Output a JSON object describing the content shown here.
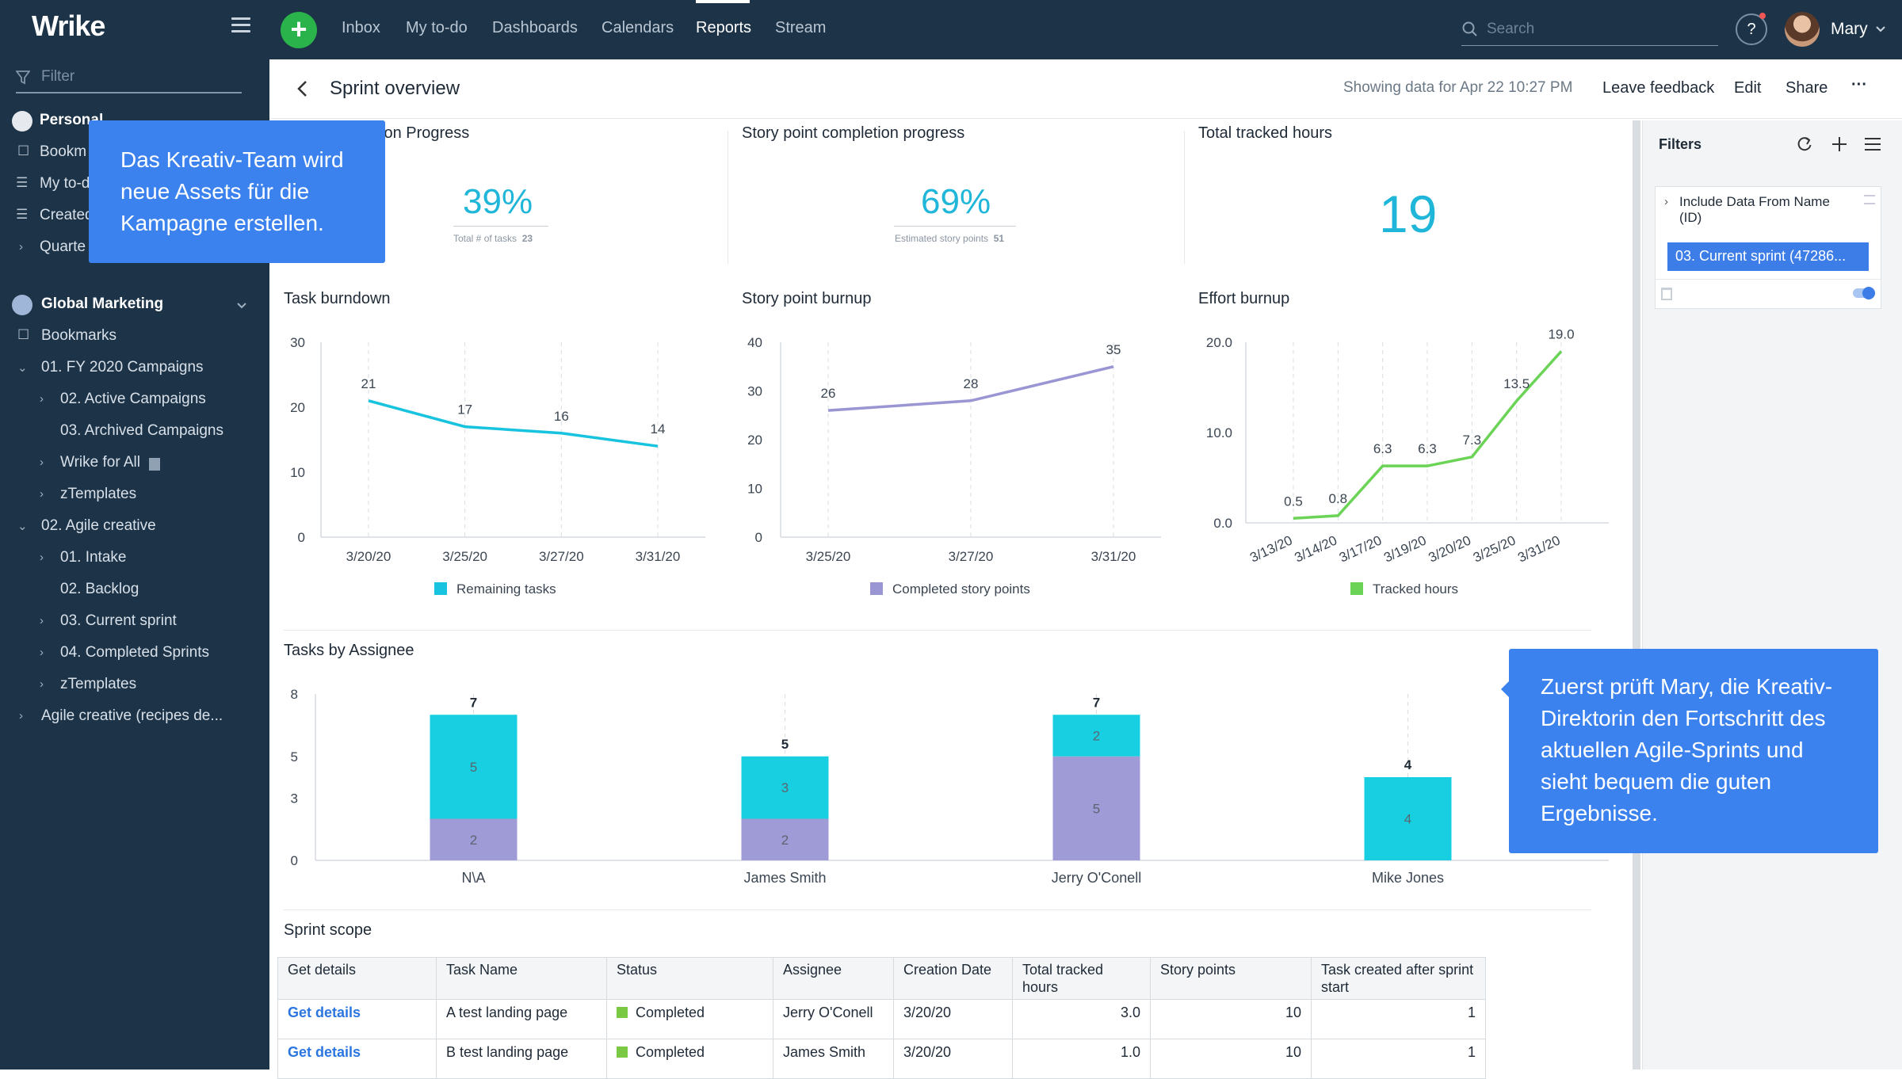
{
  "app": {
    "logo": "Wrike",
    "add_label": "+"
  },
  "nav": {
    "items": [
      "Inbox",
      "My to-do",
      "Dashboards",
      "Calendars",
      "Reports",
      "Stream"
    ],
    "active": "Reports"
  },
  "search": {
    "placeholder": "Search"
  },
  "help": {
    "label": "?"
  },
  "user": {
    "name": "Mary"
  },
  "sidebar": {
    "filter_placeholder": "Filter",
    "personal": {
      "label": "Personal",
      "items": [
        "Bookm",
        "My to-d",
        "Created",
        "Quarte"
      ]
    },
    "space": {
      "label": "Global Marketing",
      "items": [
        {
          "label": "Bookmarks"
        },
        {
          "label": "01. FY 2020 Campaigns"
        },
        {
          "label": "02. Active Campaigns"
        },
        {
          "label": "03. Archived Campaigns"
        },
        {
          "label": "Wrike for All"
        },
        {
          "label": "zTemplates"
        },
        {
          "label": "02. Agile creative"
        },
        {
          "label": "01. Intake"
        },
        {
          "label": "02. Backlog"
        },
        {
          "label": "03. Current sprint"
        },
        {
          "label": "04. Completed Sprints"
        },
        {
          "label": "zTemplates"
        },
        {
          "label": "Agile creative (recipes de..."
        }
      ]
    }
  },
  "header": {
    "title": "Sprint overview",
    "showing": "Showing data for Apr 22 10:27 PM",
    "buttons": [
      "Leave feedback",
      "Edit",
      "Share",
      "···"
    ]
  },
  "kpis": {
    "task_progress": {
      "title": "ion Progress",
      "value": "39%",
      "sub_label": "Total # of tasks",
      "sub_value": "23"
    },
    "story_progress": {
      "title": "Story point completion progress",
      "value": "69%",
      "sub_label": "Estimated story points",
      "sub_value": "51"
    },
    "tracked_hours": {
      "title": "Total tracked hours",
      "value": "19"
    }
  },
  "charts_titles": {
    "burndown": "Task burndown",
    "burnup": "Story point burnup",
    "effort": "Effort burnup",
    "assignee": "Tasks by Assignee",
    "scope": "Sprint scope"
  },
  "chart_data": [
    {
      "type": "line",
      "title": "Task burndown",
      "x": [
        "3/20/20",
        "3/25/20",
        "3/27/20",
        "3/31/20"
      ],
      "series": [
        {
          "name": "Remaining tasks",
          "values": [
            21,
            17,
            16,
            14
          ],
          "color": "#17c3de"
        }
      ],
      "yticks": [
        0,
        10,
        20,
        30
      ],
      "ylim": [
        0,
        30
      ],
      "grid": "vertical dashed",
      "legend": "bottom"
    },
    {
      "type": "line",
      "title": "Story point burnup",
      "x": [
        "3/25/20",
        "3/27/20",
        "3/31/20"
      ],
      "series": [
        {
          "name": "Completed story points",
          "values": [
            26,
            28,
            35
          ],
          "color": "#9a96d4"
        }
      ],
      "yticks": [
        0,
        10,
        20,
        30,
        40
      ],
      "ylim": [
        0,
        40
      ],
      "grid": "vertical dashed",
      "legend": "bottom"
    },
    {
      "type": "line",
      "title": "Effort burnup",
      "x": [
        "3/13/20",
        "3/14/20",
        "3/17/20",
        "3/19/20",
        "3/20/20",
        "3/25/20",
        "3/31/20"
      ],
      "series": [
        {
          "name": "Tracked hours",
          "values": [
            0.5,
            0.8,
            6.3,
            6.3,
            7.3,
            13.5,
            19.0
          ],
          "labels": [
            "0.5",
            "0.8",
            "6.3",
            "6.3",
            "7.3",
            "13.5",
            "19.0"
          ],
          "color": "#6bd457"
        }
      ],
      "ytick_labels": [
        "0.0",
        "10.0",
        "20.0"
      ],
      "ylim": [
        0,
        20
      ],
      "grid": "vertical dashed",
      "legend": "bottom"
    },
    {
      "type": "bar",
      "title": "Tasks by Assignee",
      "stacked": true,
      "categories": [
        "N\\A",
        "James Smith",
        "Jerry O'Conell",
        "Mike Jones"
      ],
      "series": [
        {
          "values": [
            2,
            2,
            5,
            0
          ],
          "color": "#9f9bd6"
        },
        {
          "values": [
            5,
            3,
            2,
            4
          ],
          "color": "#17cfe0"
        }
      ],
      "totals": [
        7,
        5,
        7,
        4
      ],
      "yticks": [
        0,
        3,
        5,
        8
      ],
      "ylim": [
        0,
        8
      ]
    }
  ],
  "filters": {
    "title": "Filters",
    "include_label": "Include Data From Name (ID)",
    "chip": "03. Current sprint (47286..."
  },
  "table": {
    "columns": [
      "Get details",
      "Task Name",
      "Status",
      "Assignee",
      "Creation Date",
      "Total tracked hours",
      "Story points",
      "Task created after sprint start"
    ],
    "rows": [
      [
        "Get details",
        "A test landing page",
        "Completed",
        "Jerry O'Conell",
        "3/20/20",
        "3.0",
        "10",
        "1"
      ],
      [
        "Get details",
        "B test landing page",
        "Completed",
        "James Smith",
        "3/20/20",
        "1.0",
        "10",
        "1"
      ]
    ]
  },
  "callouts": {
    "left": "Das Kreativ-Team wird neue Assets für die Kampagne erstellen.",
    "right": "Zuerst prüft Mary, die Kreativ-Direktorin den Fortschritt des aktuellen Agile-Sprints und sieht bequem die guten Ergebnisse."
  }
}
